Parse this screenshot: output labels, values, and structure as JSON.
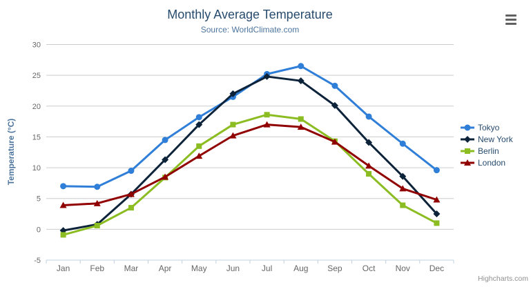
{
  "chart_data": {
    "type": "line",
    "title": "Monthly Average Temperature",
    "subtitle": "Source: WorldClimate.com",
    "xlabel": "",
    "ylabel": "Temperature (°C)",
    "categories": [
      "Jan",
      "Feb",
      "Mar",
      "Apr",
      "May",
      "Jun",
      "Jul",
      "Aug",
      "Sep",
      "Oct",
      "Nov",
      "Dec"
    ],
    "series": [
      {
        "name": "Tokyo",
        "color": "#2f7ed8",
        "marker": "circle",
        "values": [
          7.0,
          6.9,
          9.5,
          14.5,
          18.2,
          21.5,
          25.2,
          26.5,
          23.3,
          18.3,
          13.9,
          9.6
        ]
      },
      {
        "name": "New York",
        "color": "#0d233a",
        "marker": "diamond",
        "values": [
          -0.2,
          0.8,
          5.7,
          11.3,
          17.0,
          22.0,
          24.8,
          24.1,
          20.1,
          14.1,
          8.6,
          2.5
        ]
      },
      {
        "name": "Berlin",
        "color": "#8bbc21",
        "marker": "square",
        "values": [
          -0.9,
          0.6,
          3.5,
          8.4,
          13.5,
          17.0,
          18.6,
          17.9,
          14.3,
          9.0,
          3.9,
          1.0
        ]
      },
      {
        "name": "London",
        "color": "#910000",
        "marker": "triangle",
        "values": [
          3.9,
          4.2,
          5.7,
          8.5,
          11.9,
          15.2,
          17.0,
          16.6,
          14.2,
          10.3,
          6.6,
          4.8
        ]
      }
    ],
    "ylim": [
      -5,
      30
    ],
    "yticks": [
      -5,
      0,
      5,
      10,
      15,
      20,
      25,
      30
    ],
    "grid": true,
    "grid_color": "#cccccc",
    "axis_line_color": "#c0d0e0",
    "legend_position": "right"
  },
  "credits": {
    "label": "Highcharts.com"
  },
  "export_menu": {
    "icon": "hamburger-icon"
  }
}
